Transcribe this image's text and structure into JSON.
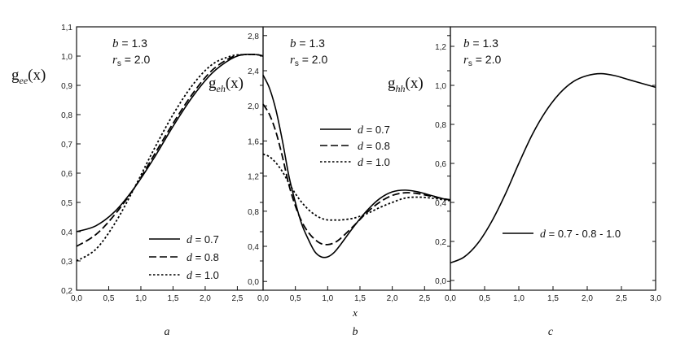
{
  "chart_data": [
    {
      "type": "line",
      "caption": "a",
      "x_ticks": [
        "0,0",
        "0,5",
        "1,0",
        "1,5",
        "2,0",
        "2,5"
      ],
      "y_ticks": [
        "0,2",
        "0,3",
        "0,4",
        "0,5",
        "0,6",
        "0,7",
        "0,8",
        "0,9",
        "1,0",
        "1,1"
      ],
      "xlim": [
        0,
        2.9
      ],
      "ylim": [
        0.2,
        1.1
      ],
      "ylabel_main": "g",
      "ylabel_sub": "ee",
      "ylabel_arg": "(x)",
      "info": [
        {
          "var": "b",
          "sub": "",
          "value": " = 1.3"
        },
        {
          "var": "r",
          "sub": "s",
          "value": " = 2.0"
        }
      ],
      "legend_position": "bottom-right",
      "series": [
        {
          "name": "d = 0.7",
          "var": "d",
          "value": " = 0.7",
          "style": "solid",
          "x": [
            0,
            0.3,
            0.6,
            0.9,
            1.2,
            1.5,
            1.8,
            2.1,
            2.4,
            2.6,
            2.8,
            2.9
          ],
          "y": [
            0.4,
            0.42,
            0.47,
            0.55,
            0.65,
            0.76,
            0.86,
            0.94,
            0.99,
            1.005,
            1.005,
            1.0
          ]
        },
        {
          "name": "d = 0.8",
          "var": "d",
          "value": " = 0.8",
          "style": "dashed",
          "x": [
            0,
            0.3,
            0.6,
            0.9,
            1.2,
            1.5,
            1.8,
            2.1,
            2.4,
            2.6,
            2.8,
            2.9
          ],
          "y": [
            0.35,
            0.39,
            0.46,
            0.55,
            0.66,
            0.77,
            0.87,
            0.95,
            0.995,
            1.005,
            1.005,
            1.0
          ]
        },
        {
          "name": "d = 1.0",
          "var": "d",
          "value": " = 1.0",
          "style": "dotted",
          "x": [
            0,
            0.3,
            0.6,
            0.9,
            1.2,
            1.5,
            1.8,
            2.1,
            2.4,
            2.6,
            2.8,
            2.9
          ],
          "y": [
            0.3,
            0.34,
            0.43,
            0.55,
            0.68,
            0.8,
            0.9,
            0.97,
            1.0,
            1.005,
            1.005,
            1.0
          ]
        }
      ]
    },
    {
      "type": "line",
      "caption": "b",
      "xlabel": "x",
      "x_ticks": [
        "0,0",
        "0,5",
        "1,0",
        "1,5",
        "2,0",
        "2,5"
      ],
      "y_ticks": [
        "0,0",
        "0,4",
        "0,8",
        "1,2",
        "1,6",
        "2,0",
        "2,4",
        "2,8"
      ],
      "xlim": [
        0,
        2.9
      ],
      "ylim": [
        -0.1,
        2.9
      ],
      "ylabel_main": "g",
      "ylabel_sub": "eh",
      "ylabel_arg": "(x)",
      "info": [
        {
          "var": "b",
          "sub": "",
          "value": " = 1.3"
        },
        {
          "var": "r",
          "sub": "s",
          "value": " = 2.0"
        }
      ],
      "legend_position": "center-right",
      "series": [
        {
          "name": "d = 0.7",
          "var": "d",
          "value": " = 0.7",
          "style": "solid",
          "x": [
            0,
            0.1,
            0.2,
            0.3,
            0.4,
            0.5,
            0.6,
            0.7,
            0.8,
            0.9,
            1.0,
            1.1,
            1.2,
            1.4,
            1.6,
            1.8,
            2.0,
            2.2,
            2.4,
            2.6,
            2.8,
            2.9
          ],
          "y": [
            2.35,
            2.2,
            1.95,
            1.6,
            1.2,
            0.9,
            0.65,
            0.48,
            0.34,
            0.28,
            0.28,
            0.33,
            0.42,
            0.62,
            0.8,
            0.94,
            1.02,
            1.04,
            1.02,
            0.98,
            0.94,
            0.93
          ]
        },
        {
          "name": "d = 0.8",
          "var": "d",
          "value": " = 0.8",
          "style": "dashed",
          "x": [
            0,
            0.1,
            0.2,
            0.3,
            0.4,
            0.5,
            0.6,
            0.7,
            0.8,
            0.9,
            1.0,
            1.1,
            1.2,
            1.4,
            1.6,
            1.8,
            2.0,
            2.2,
            2.4,
            2.6,
            2.8,
            2.9
          ],
          "y": [
            2.02,
            1.9,
            1.7,
            1.42,
            1.1,
            0.86,
            0.68,
            0.56,
            0.48,
            0.43,
            0.42,
            0.44,
            0.49,
            0.63,
            0.78,
            0.9,
            0.98,
            1.01,
            1.0,
            0.97,
            0.94,
            0.93
          ]
        },
        {
          "name": "d = 1.0",
          "var": "d",
          "value": " = 1.0",
          "style": "dotted",
          "x": [
            0,
            0.1,
            0.2,
            0.3,
            0.4,
            0.5,
            0.6,
            0.7,
            0.8,
            0.9,
            1.0,
            1.1,
            1.2,
            1.4,
            1.6,
            1.8,
            2.0,
            2.2,
            2.4,
            2.6,
            2.8,
            2.9
          ],
          "y": [
            1.45,
            1.42,
            1.35,
            1.25,
            1.12,
            1.0,
            0.9,
            0.82,
            0.76,
            0.72,
            0.7,
            0.7,
            0.7,
            0.72,
            0.77,
            0.84,
            0.9,
            0.95,
            0.96,
            0.95,
            0.93,
            0.92
          ]
        }
      ]
    },
    {
      "type": "line",
      "caption": "c",
      "x_ticks": [
        "0,0",
        "0,5",
        "1,0",
        "1,5",
        "2,0",
        "2,5",
        "3,0"
      ],
      "y_ticks": [
        "0,0",
        "0,2",
        "0,4",
        "0,6",
        "0,8",
        "1,0",
        "1,2"
      ],
      "xlim": [
        0,
        3.0
      ],
      "ylim": [
        -0.05,
        1.3
      ],
      "ylabel_main": "g",
      "ylabel_sub": "hh",
      "ylabel_arg": "(x)",
      "info": [
        {
          "var": "b",
          "sub": "",
          "value": " = 1.3"
        },
        {
          "var": "r",
          "sub": "s",
          "value": " = 2.0"
        }
      ],
      "legend_position": "center",
      "series": [
        {
          "name": "d = 0.7 - 0.8 - 1.0",
          "var": "d",
          "value": " = 0.7 - 0.8 - 1.0",
          "style": "solid",
          "x": [
            0,
            0.2,
            0.4,
            0.6,
            0.8,
            1.0,
            1.2,
            1.4,
            1.6,
            1.8,
            2.0,
            2.2,
            2.4,
            2.6,
            2.8,
            3.0
          ],
          "y": [
            0.09,
            0.12,
            0.19,
            0.3,
            0.44,
            0.6,
            0.75,
            0.87,
            0.96,
            1.02,
            1.05,
            1.06,
            1.05,
            1.03,
            1.01,
            0.99
          ]
        }
      ]
    }
  ]
}
